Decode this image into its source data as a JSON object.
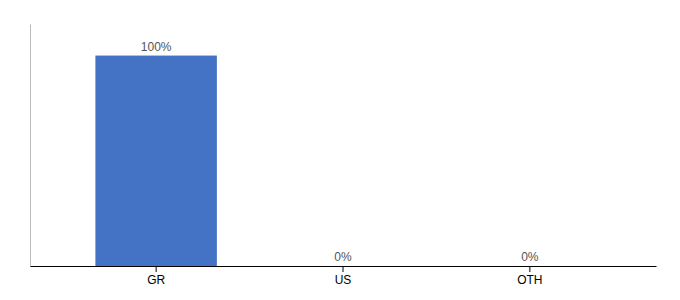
{
  "chart_data": {
    "type": "bar",
    "categories": [
      "GR",
      "US",
      "OTH"
    ],
    "values": [
      100,
      0,
      0
    ],
    "value_labels": [
      "100%",
      "0%",
      "0%"
    ],
    "color": "#4472c4",
    "ylim": [
      0,
      115
    ],
    "data_labels": true,
    "tick_labels": "x"
  }
}
